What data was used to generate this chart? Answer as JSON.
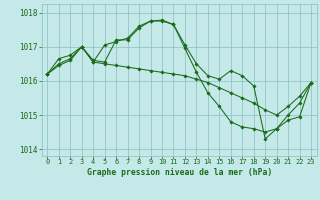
{
  "xlabel": "Graphe pression niveau de la mer (hPa)",
  "ylim": [
    1013.8,
    1018.25
  ],
  "xlim": [
    -0.5,
    23.5
  ],
  "yticks": [
    1014,
    1015,
    1016,
    1017,
    1018
  ],
  "xticks": [
    0,
    1,
    2,
    3,
    4,
    5,
    6,
    7,
    8,
    9,
    10,
    11,
    12,
    13,
    14,
    15,
    16,
    17,
    18,
    19,
    20,
    21,
    22,
    23
  ],
  "background_color": "#c5e8e8",
  "grid_color": "#88c0c0",
  "line_color": "#1a6b1a",
  "line1": [
    1016.2,
    1016.65,
    1016.75,
    1017.0,
    1016.6,
    1016.55,
    1017.2,
    1017.2,
    1017.55,
    1017.75,
    1017.75,
    1017.65,
    1017.05,
    1016.5,
    1016.15,
    1016.05,
    1016.3,
    1016.15,
    1015.85,
    1014.3,
    1014.6,
    1014.85,
    1014.95,
    1015.95
  ],
  "line2": [
    1016.2,
    1016.5,
    1016.65,
    1017.0,
    1016.55,
    1017.05,
    1017.15,
    1017.25,
    1017.6,
    1017.75,
    1017.78,
    1017.65,
    1016.95,
    1016.25,
    1015.65,
    1015.25,
    1014.8,
    1014.65,
    1014.6,
    1014.5,
    1014.6,
    1015.0,
    1015.35,
    1015.95
  ],
  "line3": [
    1016.2,
    1016.45,
    1016.6,
    1017.0,
    1016.55,
    1016.5,
    1016.45,
    1016.4,
    1016.35,
    1016.3,
    1016.25,
    1016.2,
    1016.15,
    1016.05,
    1015.95,
    1015.8,
    1015.65,
    1015.5,
    1015.35,
    1015.15,
    1015.0,
    1015.25,
    1015.55,
    1015.95
  ]
}
